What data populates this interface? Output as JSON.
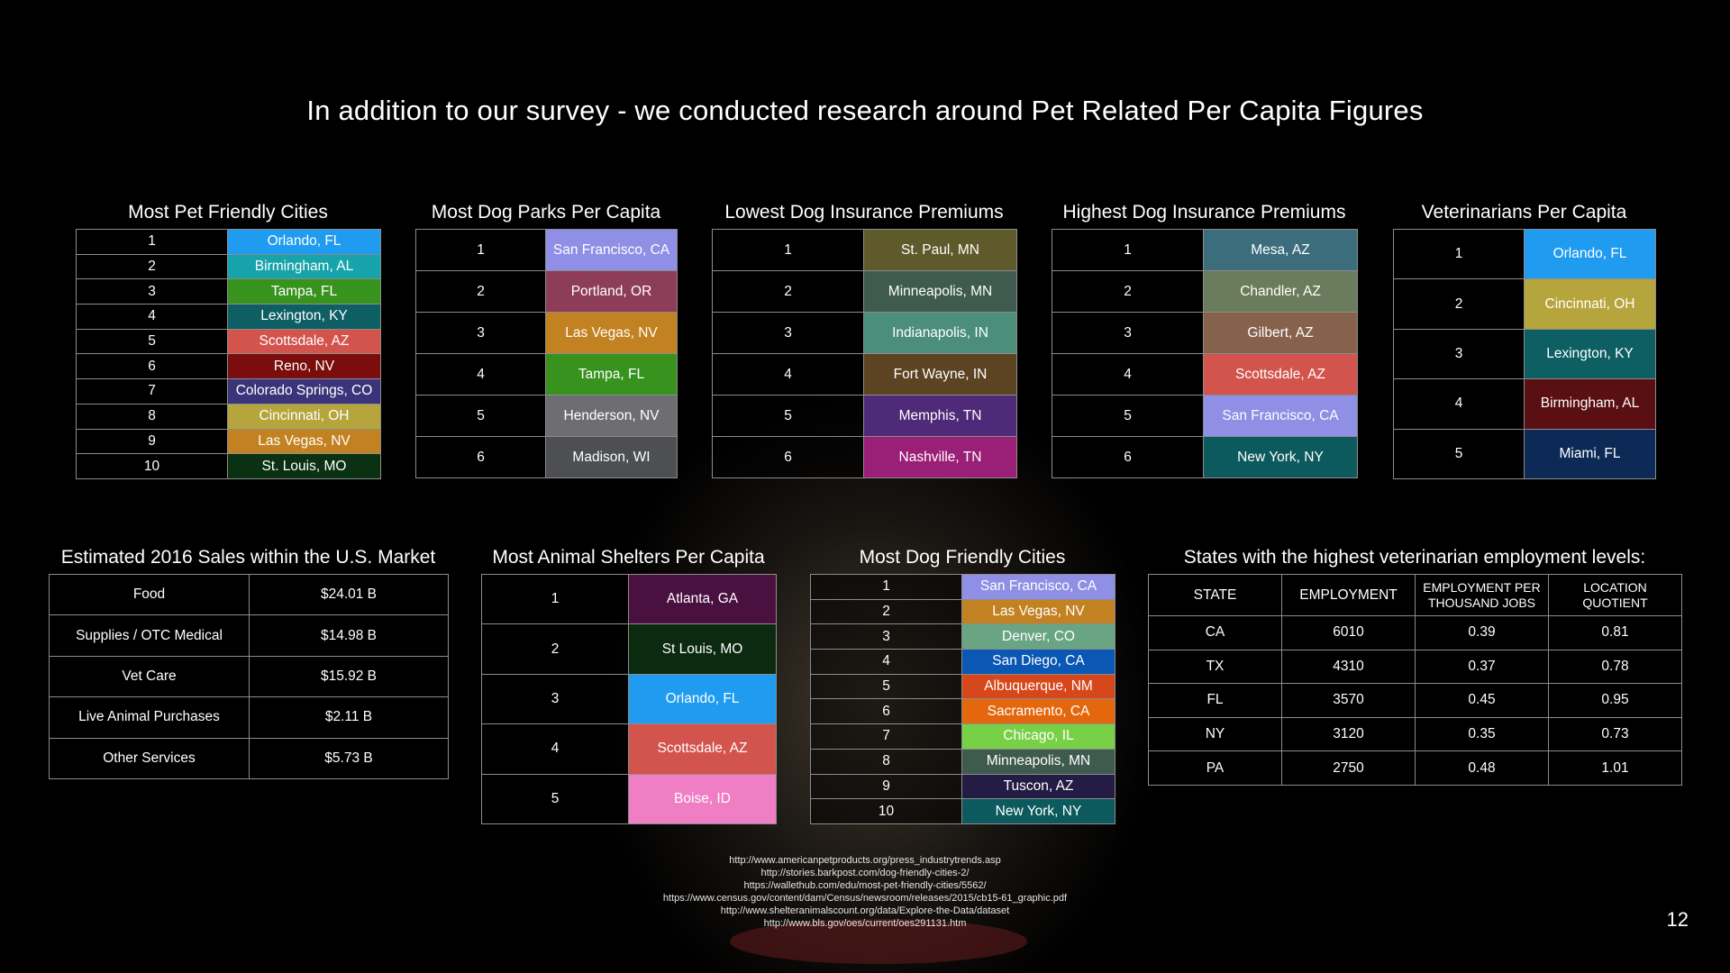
{
  "title": "In addition to our survey - we conducted research around Pet Related Per Capita Figures",
  "most_pet_friendly": {
    "title": "Most Pet Friendly Cities",
    "rows": [
      {
        "rank": "1",
        "city": "Orlando, FL",
        "color": "#1f9bf0"
      },
      {
        "rank": "2",
        "city": "Birmingham, AL",
        "color": "#16a3a9"
      },
      {
        "rank": "3",
        "city": "Tampa, FL",
        "color": "#37921e"
      },
      {
        "rank": "4",
        "city": "Lexington, KY",
        "color": "#0d5f63"
      },
      {
        "rank": "5",
        "city": "Scottsdale, AZ",
        "color": "#d3534d"
      },
      {
        "rank": "6",
        "city": "Reno, NV",
        "color": "#7b0d0d"
      },
      {
        "rank": "7",
        "city": "Colorado Springs, CO",
        "color": "#3c347a"
      },
      {
        "rank": "8",
        "city": "Cincinnati, OH",
        "color": "#b6a53c"
      },
      {
        "rank": "9",
        "city": "Las Vegas, NV",
        "color": "#c38221"
      },
      {
        "rank": "10",
        "city": "St. Louis, MO",
        "color": "#0b3113"
      }
    ]
  },
  "dog_parks": {
    "title": "Most Dog Parks Per Capita",
    "rows": [
      {
        "rank": "1",
        "city": "San Francisco, CA",
        "color": "#8f8fe6"
      },
      {
        "rank": "2",
        "city": "Portland, OR",
        "color": "#8e3d58"
      },
      {
        "rank": "3",
        "city": "Las Vegas, NV",
        "color": "#c38221"
      },
      {
        "rank": "4",
        "city": "Tampa, FL",
        "color": "#37921e"
      },
      {
        "rank": "5",
        "city": "Henderson, NV",
        "color": "#6e6e72"
      },
      {
        "rank": "6",
        "city": "Madison, WI",
        "color": "#4d4f52"
      }
    ]
  },
  "lowest_insurance": {
    "title": "Lowest Dog Insurance Premiums",
    "rows": [
      {
        "rank": "1",
        "city": "St. Paul, MN",
        "color": "#5f5a2b"
      },
      {
        "rank": "2",
        "city": "Minneapolis, MN",
        "color": "#3f5b4f"
      },
      {
        "rank": "3",
        "city": "Indianapolis, IN",
        "color": "#4b8e7a"
      },
      {
        "rank": "4",
        "city": "Fort Wayne, IN",
        "color": "#5c4321"
      },
      {
        "rank": "5",
        "city": "Memphis, TN",
        "color": "#4f2a78"
      },
      {
        "rank": "6",
        "city": "Nashville, TN",
        "color": "#9a1f76"
      }
    ]
  },
  "highest_insurance": {
    "title": "Highest Dog Insurance Premiums",
    "rows": [
      {
        "rank": "1",
        "city": "Mesa, AZ",
        "color": "#3b6d7d"
      },
      {
        "rank": "2",
        "city": "Chandler, AZ",
        "color": "#6b7c5c"
      },
      {
        "rank": "3",
        "city": "Gilbert, AZ",
        "color": "#86624d"
      },
      {
        "rank": "4",
        "city": "Scottsdale, AZ",
        "color": "#d3534d"
      },
      {
        "rank": "5",
        "city": "San Francisco, CA",
        "color": "#8f8fe6"
      },
      {
        "rank": "6",
        "city": "New York, NY",
        "color": "#0c5a5d"
      }
    ]
  },
  "veterinarians": {
    "title": "Veterinarians Per Capita",
    "rows": [
      {
        "rank": "1",
        "city": "Orlando, FL",
        "color": "#1f9bf0"
      },
      {
        "rank": "2",
        "city": "Cincinnati, OH",
        "color": "#b6a53c"
      },
      {
        "rank": "3",
        "city": "Lexington, KY",
        "color": "#0d5f63"
      },
      {
        "rank": "4",
        "city": "Birmingham, AL",
        "color": "#5a0f12"
      },
      {
        "rank": "5",
        "city": "Miami, FL",
        "color": "#0c2a55"
      }
    ]
  },
  "sales": {
    "title": "Estimated 2016 Sales within the U.S. Market",
    "rows": [
      {
        "label": "Food",
        "value": "$24.01 B"
      },
      {
        "label": "Supplies / OTC Medical",
        "value": "$14.98 B"
      },
      {
        "label": "Vet Care",
        "value": "$15.92 B"
      },
      {
        "label": "Live Animal Purchases",
        "value": "$2.11 B"
      },
      {
        "label": "Other Services",
        "value": "$5.73 B"
      }
    ]
  },
  "shelters": {
    "title": "Most Animal Shelters Per Capita",
    "rows": [
      {
        "rank": "1",
        "city": "Atlanta, GA",
        "color": "#4a1040"
      },
      {
        "rank": "2",
        "city": "St Louis, MO",
        "color": "#0b2a10"
      },
      {
        "rank": "3",
        "city": "Orlando, FL",
        "color": "#1f9bf0"
      },
      {
        "rank": "4",
        "city": "Scottsdale, AZ",
        "color": "#d3534d"
      },
      {
        "rank": "5",
        "city": "Boise, ID",
        "color": "#f07ec4"
      }
    ]
  },
  "dog_friendly": {
    "title": "Most Dog Friendly Cities",
    "rows": [
      {
        "rank": "1",
        "city": "San Francisco, CA",
        "color": "#8f8fe6"
      },
      {
        "rank": "2",
        "city": "Las Vegas, NV",
        "color": "#c38221"
      },
      {
        "rank": "3",
        "city": "Denver, CO",
        "color": "#6aa583"
      },
      {
        "rank": "4",
        "city": "San Diego, CA",
        "color": "#0b57b4"
      },
      {
        "rank": "5",
        "city": "Albuquerque, NM",
        "color": "#d7471c"
      },
      {
        "rank": "6",
        "city": "Sacramento, CA",
        "color": "#e4670e"
      },
      {
        "rank": "7",
        "city": "Chicago, IL",
        "color": "#77d045"
      },
      {
        "rank": "8",
        "city": "Minneapolis, MN",
        "color": "#3f5b4f"
      },
      {
        "rank": "9",
        "city": "Tuscon, AZ",
        "color": "#241c44"
      },
      {
        "rank": "10",
        "city": "New York, NY",
        "color": "#0c5a5d"
      }
    ]
  },
  "vet_employment": {
    "title": "States with the highest veterinarian employment levels:",
    "headers": [
      "STATE",
      "EMPLOYMENT",
      "EMPLOYMENT PER THOUSAND JOBS",
      "LOCATION QUOTIENT"
    ],
    "rows": [
      {
        "state": "CA",
        "employment": "6010",
        "per_thousand": "0.39",
        "quotient": "0.81"
      },
      {
        "state": "TX",
        "employment": "4310",
        "per_thousand": "0.37",
        "quotient": "0.78"
      },
      {
        "state": "FL",
        "employment": "3570",
        "per_thousand": "0.45",
        "quotient": "0.95"
      },
      {
        "state": "NY",
        "employment": "3120",
        "per_thousand": "0.35",
        "quotient": "0.73"
      },
      {
        "state": "PA",
        "employment": "2750",
        "per_thousand": "0.48",
        "quotient": "1.01"
      }
    ]
  },
  "sources": [
    "http://www.americanpetproducts.org/press_industrytrends.asp",
    "http://stories.barkpost.com/dog-friendly-cities-2/",
    "https://wallethub.com/edu/most-pet-friendly-cities/5562/",
    "https://www.census.gov/content/dam/Census/newsroom/releases/2015/cb15-61_graphic.pdf",
    "http://www.shelteranimalscount.org/data/Explore-the-Data/dataset",
    "http://www.bls.gov/oes/current/oes291131.htm"
  ],
  "page_number": "12"
}
